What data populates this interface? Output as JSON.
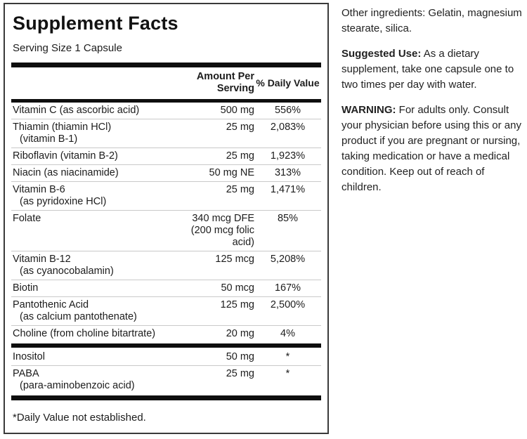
{
  "panel": {
    "title": "Supplement Facts",
    "serving_size": "Serving Size 1 Capsule",
    "columns": {
      "amount": "Amount Per Serving",
      "daily_value": "% Daily Value"
    },
    "rows": [
      {
        "name": "Vitamin C (as ascorbic acid)",
        "name2": "",
        "amount": "500 mg",
        "dv": "556%",
        "thick_bar_after": false
      },
      {
        "name": "Thiamin (thiamin HCl)",
        "name2": "(vitamin B-1)",
        "amount": "25 mg",
        "dv": "2,083%",
        "thick_bar_after": false
      },
      {
        "name": "Riboflavin (vitamin B-2)",
        "name2": "",
        "amount": "25 mg",
        "dv": "1,923%",
        "thick_bar_after": false
      },
      {
        "name": "Niacin (as niacinamide)",
        "name2": "",
        "amount": "50 mg NE",
        "dv": "313%",
        "thick_bar_after": false
      },
      {
        "name": "Vitamin B-6",
        "name2": "(as pyridoxine HCl)",
        "amount": "25 mg",
        "dv": "1,471%",
        "thick_bar_after": false
      },
      {
        "name": "Folate",
        "name2": "",
        "amount": "340 mcg DFE (200 mcg folic acid)",
        "dv": "85%",
        "thick_bar_after": false
      },
      {
        "name": "Vitamin B-12",
        "name2": "(as cyanocobalamin)",
        "amount": "125 mcg",
        "dv": "5,208%",
        "thick_bar_after": false
      },
      {
        "name": "Biotin",
        "name2": "",
        "amount": "50 mcg",
        "dv": "167%",
        "thick_bar_after": false
      },
      {
        "name": "Pantothenic Acid",
        "name2": "(as calcium pantothenate)",
        "amount": "125 mg",
        "dv": "2,500%",
        "thick_bar_after": false
      },
      {
        "name": "Choline (from choline bitartrate)",
        "name2": "",
        "amount": "20 mg",
        "dv": "4%",
        "thick_bar_after": true
      },
      {
        "name": "Inositol",
        "name2": "",
        "amount": "50 mg",
        "dv": "*",
        "thick_bar_after": false
      },
      {
        "name": "PABA",
        "name2": "(para-aminobenzoic acid)",
        "amount": "25 mg",
        "dv": "*",
        "thick_bar_after": true
      }
    ],
    "footnote": "*Daily Value not established."
  },
  "sidebar": {
    "other_ingredients": "Other ingredients: Gelatin, magnesium stearate, silica.",
    "suggested_use_label": "Suggested Use:",
    "suggested_use_text": " As a dietary supplement, take one capsule one to two times per day with water.",
    "warning_label": "WARNING:",
    "warning_text": " For adults only. Consult your physician before using this or any product if you are pregnant or nursing, taking medication or have a medical condition. Keep out of reach of children."
  },
  "colors": {
    "text": "#1c1c1c",
    "rule_thin": "#c9c9c9",
    "rule_thick": "#0e0e0e",
    "panel_border": "#3a3a3a",
    "background": "#ffffff"
  }
}
